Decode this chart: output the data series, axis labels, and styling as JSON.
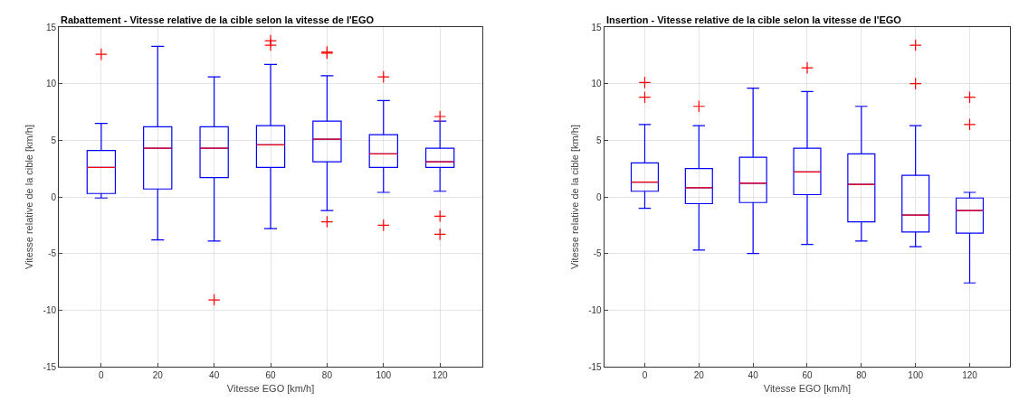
{
  "chart_data": [
    {
      "type": "box",
      "title": "Rabattement - Vitesse relative de la cible selon la vitesse de l'EGO",
      "xlabel": "Vitesse EGO [km/h]",
      "ylabel": "Vitesse relative de la cible [km/h]",
      "categories": [
        "0",
        "20",
        "40",
        "60",
        "80",
        "100",
        "120"
      ],
      "ylim": [
        -15,
        15
      ],
      "yticks": [
        -15,
        -10,
        -5,
        0,
        5,
        10,
        15
      ],
      "grid": true,
      "marker": "cross",
      "series": [
        {
          "color": "#0000ff",
          "boxes": [
            {
              "low": -0.1,
              "q1": 0.3,
              "median": 2.6,
              "q3": 4.1,
              "high": 6.5,
              "outliers": [
                12.6
              ]
            },
            {
              "low": -3.8,
              "q1": 0.7,
              "median": 4.3,
              "q3": 6.2,
              "high": 13.3
            },
            {
              "low": -3.9,
              "q1": 1.7,
              "median": 4.3,
              "q3": 6.2,
              "high": 10.6,
              "outliers": [
                -9.1
              ]
            },
            {
              "low": -2.8,
              "q1": 2.6,
              "median": 4.6,
              "q3": 6.3,
              "high": 11.7,
              "outliers": [
                13.8,
                13.4
              ]
            },
            {
              "low": -1.2,
              "q1": 3.1,
              "median": 5.1,
              "q3": 6.7,
              "high": 10.7,
              "outliers": [
                12.8,
                12.7,
                -2.2
              ]
            },
            {
              "low": 0.4,
              "q1": 2.6,
              "median": 3.8,
              "q3": 5.5,
              "high": 8.5,
              "outliers": [
                10.6,
                -2.5
              ]
            },
            {
              "low": 0.5,
              "q1": 2.6,
              "median": 3.1,
              "q3": 4.3,
              "high": 6.7,
              "outliers": [
                7.1,
                -1.7,
                -3.3
              ]
            }
          ]
        }
      ]
    },
    {
      "type": "box",
      "title": "Insertion - Vitesse relative de la cible selon la vitesse de l'EGO",
      "xlabel": "Vitesse EGO [km/h]",
      "ylabel": "Vitesse relative de la cible [km/h]",
      "categories": [
        "0",
        "20",
        "40",
        "60",
        "80",
        "100",
        "120"
      ],
      "ylim": [
        -15,
        15
      ],
      "yticks": [
        -15,
        -10,
        -5,
        0,
        5,
        10,
        15
      ],
      "grid": true,
      "marker": "cross",
      "series": [
        {
          "color": "#0000ff",
          "boxes": [
            {
              "low": -1.0,
              "q1": 0.5,
              "median": 1.3,
              "q3": 3.0,
              "high": 6.4,
              "outliers": [
                10.1,
                8.8
              ]
            },
            {
              "low": -4.7,
              "q1": -0.6,
              "median": 0.8,
              "q3": 2.5,
              "high": 6.3,
              "outliers": [
                8.0
              ]
            },
            {
              "low": -5.0,
              "q1": -0.5,
              "median": 1.2,
              "q3": 3.5,
              "high": 9.6
            },
            {
              "low": -4.2,
              "q1": 0.2,
              "median": 2.2,
              "q3": 4.3,
              "high": 9.3,
              "outliers": [
                11.4
              ]
            },
            {
              "low": -3.9,
              "q1": -2.2,
              "median": 1.1,
              "q3": 3.8,
              "high": 8.0
            },
            {
              "low": -4.4,
              "q1": -3.1,
              "median": -1.6,
              "q3": 1.9,
              "high": 6.3,
              "outliers": [
                13.4,
                10.0
              ]
            },
            {
              "low": -7.6,
              "q1": -3.2,
              "median": -1.2,
              "q3": -0.1,
              "high": 0.4,
              "outliers": [
                8.8,
                6.4
              ]
            }
          ]
        }
      ]
    }
  ]
}
